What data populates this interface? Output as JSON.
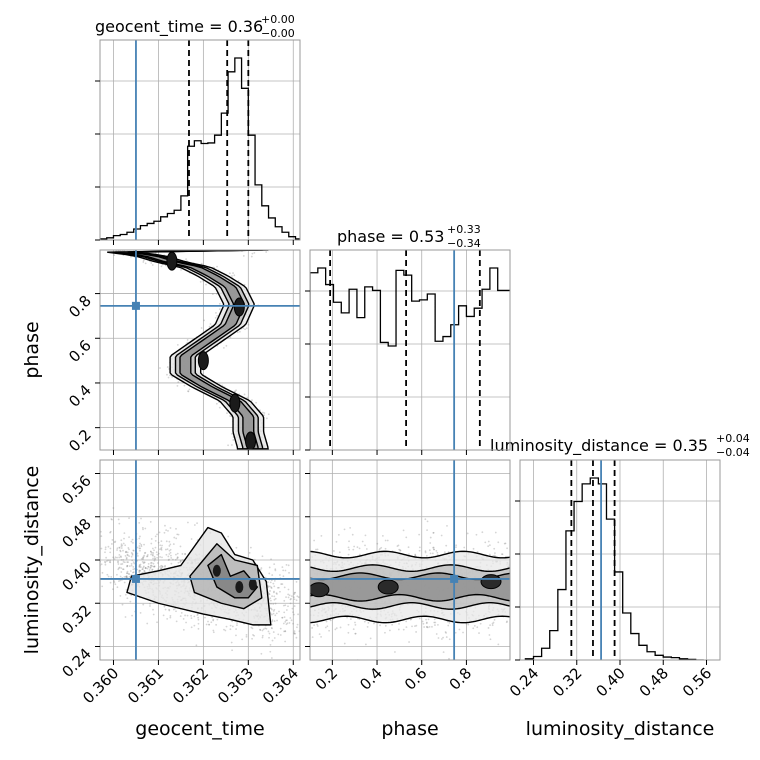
{
  "chart_data": {
    "type": "corner",
    "parameters": [
      "geocent_time",
      "phase",
      "luminosity_distance"
    ],
    "truths": {
      "geocent_time": 0.3605,
      "phase": 0.745,
      "luminosity_distance": 0.365
    },
    "colors": {
      "truth": "#4682b4",
      "hist": "#000000",
      "grid": "#b0b0b0",
      "frame": "#9a9a9a"
    },
    "titles": {
      "geocent_time": {
        "prefix": "geocent_time = ",
        "median": "0.36",
        "plus": "+0.00",
        "minus": "−0.00"
      },
      "phase": {
        "prefix": "phase = ",
        "median": "0.53",
        "plus": "+0.33",
        "minus": "−0.34"
      },
      "luminosity_distance": {
        "prefix": "luminosity_distance = ",
        "median": "0.35",
        "plus": "+0.04",
        "minus": "−0.04"
      }
    },
    "ranges": {
      "geocent_time": [
        0.3597,
        0.36415
      ],
      "phase": [
        0.1,
        0.995
      ],
      "luminosity_distance": [
        0.215,
        0.585
      ]
    },
    "ticks": {
      "geocent_time": {
        "values": [
          0.36,
          0.361,
          0.362,
          0.363,
          0.364
        ],
        "labels": [
          "0.360",
          "0.361",
          "0.362",
          "0.363",
          "0.364"
        ]
      },
      "phase": {
        "values": [
          0.2,
          0.4,
          0.6,
          0.8
        ],
        "labels": [
          "0.2",
          "0.4",
          "0.6",
          "0.8"
        ]
      },
      "luminosity_distance": {
        "values": [
          0.24,
          0.32,
          0.4,
          0.48,
          0.56
        ],
        "labels": [
          "0.24",
          "0.32",
          "0.40",
          "0.48",
          "0.56"
        ]
      }
    },
    "quantiles": {
      "geocent_time": [
        0.36168,
        0.36253,
        0.363
      ],
      "phase": [
        0.19,
        0.53,
        0.86
      ],
      "luminosity_distance": [
        0.31,
        0.35,
        0.39
      ]
    },
    "histograms": {
      "geocent_time": {
        "edges": [
          0.3597,
          0.35985,
          0.36,
          0.36015,
          0.3603,
          0.36045,
          0.3606,
          0.36075,
          0.3609,
          0.36105,
          0.3612,
          0.36135,
          0.3615,
          0.36165,
          0.3618,
          0.36195,
          0.3621,
          0.36225,
          0.3624,
          0.36255,
          0.3627,
          0.36285,
          0.363,
          0.36315,
          0.3633,
          0.36345,
          0.3636,
          0.36375,
          0.3639,
          0.36405,
          0.3642
        ],
        "counts": [
          2,
          4,
          8,
          10,
          14,
          20,
          26,
          30,
          34,
          42,
          48,
          54,
          80,
          170,
          180,
          175,
          176,
          190,
          230,
          305,
          330,
          275,
          190,
          100,
          62,
          40,
          24,
          14,
          6,
          2
        ]
      },
      "phase": {
        "edges": [
          0.1,
          0.135,
          0.17,
          0.205,
          0.24,
          0.275,
          0.31,
          0.345,
          0.38,
          0.415,
          0.45,
          0.485,
          0.52,
          0.555,
          0.59,
          0.625,
          0.66,
          0.695,
          0.73,
          0.765,
          0.8,
          0.835,
          0.87,
          0.905,
          0.94,
          0.975,
          1.01
        ],
        "counts": [
          150,
          154,
          140,
          125,
          116,
          136,
          112,
          138,
          135,
          91,
          88,
          152,
          148,
          126,
          127,
          132,
          92,
          96,
          106,
          122,
          113,
          120,
          136,
          154,
          135,
          135
        ]
      },
      "luminosity_distance": {
        "edges": [
          0.225,
          0.24,
          0.255,
          0.27,
          0.285,
          0.3,
          0.315,
          0.33,
          0.345,
          0.36,
          0.375,
          0.39,
          0.405,
          0.42,
          0.435,
          0.45,
          0.465,
          0.48,
          0.495,
          0.51,
          0.525,
          0.54,
          0.555
        ],
        "counts": [
          2,
          6,
          20,
          50,
          120,
          220,
          270,
          300,
          310,
          300,
          240,
          150,
          80,
          45,
          25,
          14,
          8,
          5,
          4,
          2,
          1,
          0
        ]
      }
    },
    "contours": {
      "phase_vs_geocent_time": {
        "centerline": [
          [
            0.36,
            0.99
          ],
          [
            0.3608,
            0.97
          ],
          [
            0.3613,
            0.94
          ],
          [
            0.3618,
            0.92
          ],
          [
            0.3622,
            0.88
          ],
          [
            0.3626,
            0.83
          ],
          [
            0.3628,
            0.75
          ],
          [
            0.3626,
            0.66
          ],
          [
            0.3621,
            0.59
          ],
          [
            0.3616,
            0.52
          ],
          [
            0.3616,
            0.44
          ],
          [
            0.3621,
            0.38
          ],
          [
            0.3627,
            0.32
          ],
          [
            0.363,
            0.25
          ],
          [
            0.363,
            0.18
          ],
          [
            0.3631,
            0.11
          ]
        ],
        "cores": [
          [
            0.3613,
            0.945
          ],
          [
            0.3628,
            0.74
          ],
          [
            0.362,
            0.5
          ],
          [
            0.3627,
            0.31
          ],
          [
            0.36305,
            0.14
          ]
        ]
      },
      "luminosity_distance_vs_geocent_time": {
        "centers": [
          [
            0.3623,
            0.37
          ],
          [
            0.3628,
            0.36
          ],
          [
            0.3631,
            0.355
          ]
        ],
        "cores": [
          [
            0.3623,
            0.38
          ],
          [
            0.3628,
            0.35
          ],
          [
            0.3631,
            0.355
          ]
        ]
      },
      "luminosity_distance_vs_phase": {
        "band_center": 0.35,
        "cores": [
          [
            0.14,
            0.345
          ],
          [
            0.45,
            0.35
          ],
          [
            0.91,
            0.36
          ]
        ]
      }
    }
  }
}
